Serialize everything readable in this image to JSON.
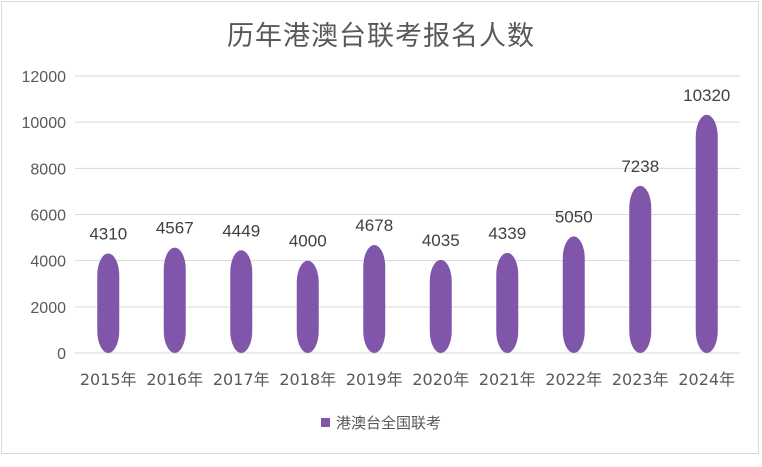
{
  "chart_data": {
    "type": "bar",
    "title": "历年港澳台联考报名人数",
    "categories": [
      "2015年",
      "2016年",
      "2017年",
      "2018年",
      "2019年",
      "2020年",
      "2021年",
      "2022年",
      "2023年",
      "2024年"
    ],
    "series": [
      {
        "name": "港澳台全国联考",
        "values": [
          4310,
          4567,
          4449,
          4000,
          4678,
          4035,
          4339,
          5050,
          7238,
          10320
        ]
      }
    ],
    "ylim": [
      0,
      12000
    ],
    "yticks": [
      0,
      2000,
      4000,
      6000,
      8000,
      10000,
      12000
    ],
    "grid": true,
    "legend_position": "bottom",
    "bar_color": "#8056aa",
    "data_labels": true
  }
}
